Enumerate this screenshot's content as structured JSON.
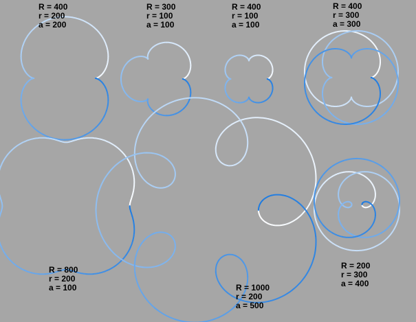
{
  "colors": {
    "background": "#a6a6a6",
    "curve_start": "#ffffff",
    "curve_end": "#1e7be0"
  },
  "curves": [
    {
      "name": "curve-1",
      "R": 400,
      "r": 200,
      "a": 200,
      "labels": [
        "R = 400",
        "r = 200",
        "a = 200"
      ]
    },
    {
      "name": "curve-2",
      "R": 300,
      "r": 100,
      "a": 100,
      "labels": [
        "R = 300",
        "r = 100",
        "a = 100"
      ]
    },
    {
      "name": "curve-3",
      "R": 400,
      "r": 100,
      "a": 100,
      "labels": [
        "R = 400",
        "r = 100",
        "a = 100"
      ]
    },
    {
      "name": "curve-4",
      "R": 400,
      "r": 300,
      "a": 300,
      "labels": [
        "R = 400",
        "r = 300",
        "a = 300"
      ]
    },
    {
      "name": "curve-5",
      "R": 800,
      "r": 200,
      "a": 100,
      "labels": [
        "R = 800",
        "r = 200",
        "a = 100"
      ]
    },
    {
      "name": "curve-6",
      "R": 1000,
      "r": 200,
      "a": 500,
      "labels": [
        "R = 1000",
        "r = 200",
        "a = 500"
      ]
    },
    {
      "name": "curve-7",
      "R": 200,
      "r": 300,
      "a": 400,
      "labels": [
        "R = 200",
        "r = 300",
        "a = 400"
      ]
    }
  ]
}
